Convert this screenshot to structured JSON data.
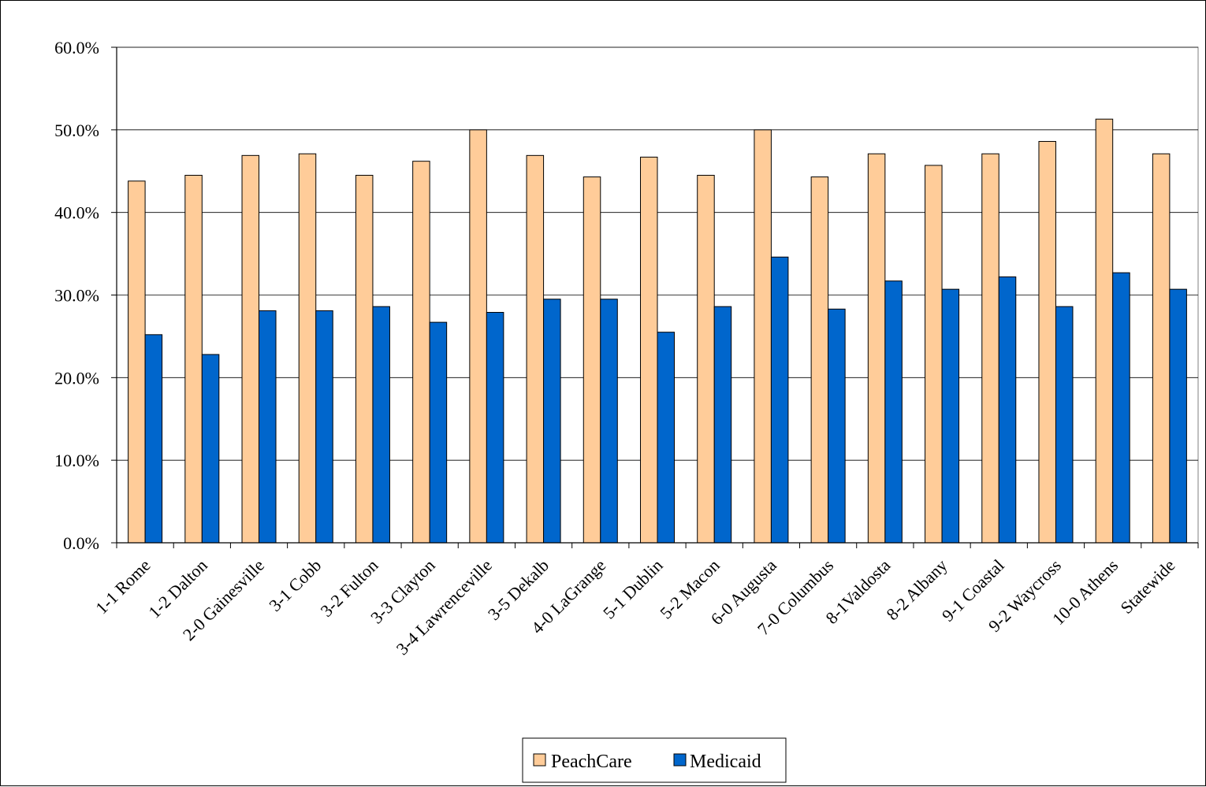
{
  "chart_data": {
    "type": "bar",
    "title": "",
    "xlabel": "",
    "ylabel": "",
    "categories": [
      "1-1 Rome",
      "1-2 Dalton",
      "2-0 Gainesville",
      "3-1 Cobb",
      "3-2 Fulton",
      "3-3 Clayton",
      "3-4 Lawrenceville",
      "3-5 Dekalb",
      "4-0 LaGrange",
      "5-1 Dublin",
      "5-2 Macon",
      "6-0 Augusta",
      "7-0 Columbus",
      "8-1Valdosta",
      "8-2 Albany",
      "9-1 Coastal",
      "9-2 Waycross",
      "10-0 Athens",
      "Statewide"
    ],
    "series": [
      {
        "name": "PeachCare",
        "color": "#FFCC99",
        "values": [
          43.8,
          44.5,
          46.9,
          47.1,
          44.5,
          46.2,
          50.0,
          46.9,
          44.3,
          46.7,
          44.5,
          50.0,
          44.3,
          47.1,
          45.7,
          47.1,
          48.6,
          51.3,
          47.1
        ]
      },
      {
        "name": "Medicaid",
        "color": "#0066CC",
        "values": [
          25.2,
          22.8,
          28.1,
          28.1,
          28.6,
          26.7,
          27.9,
          29.5,
          29.5,
          25.5,
          28.6,
          34.6,
          28.3,
          31.7,
          30.7,
          32.2,
          28.6,
          32.7,
          30.7
        ]
      }
    ],
    "yticks": [
      "0.0%",
      "10.0%",
      "20.0%",
      "30.0%",
      "40.0%",
      "50.0%",
      "60.0%"
    ],
    "ylim": [
      0,
      60
    ],
    "grid": true,
    "legend_position": "bottom"
  }
}
